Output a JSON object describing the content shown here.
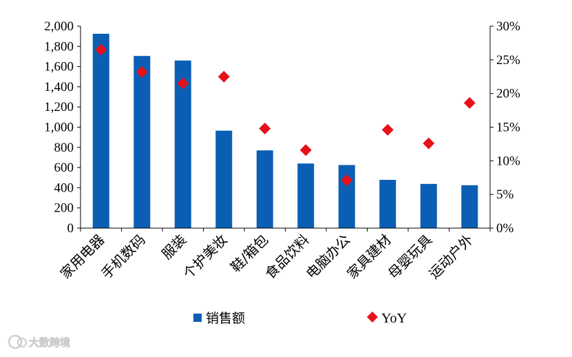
{
  "chart_data": {
    "type": "bar",
    "categories": [
      "家用电器",
      "手机数码",
      "服装",
      "个护美妆",
      "鞋/箱包",
      "食品饮料",
      "电脑办公",
      "家具建材",
      "母婴玩具",
      "运动户外"
    ],
    "series": [
      {
        "name": "销售额",
        "type": "bar",
        "axis": "left",
        "values": [
          1925,
          1705,
          1660,
          965,
          770,
          640,
          625,
          478,
          438,
          425
        ]
      },
      {
        "name": "YoY",
        "type": "scatter",
        "axis": "right",
        "values": [
          26.5,
          23.2,
          21.5,
          22.5,
          14.8,
          11.6,
          7.1,
          14.6,
          12.6,
          18.6
        ]
      }
    ],
    "y_left": {
      "min": 0,
      "max": 2000,
      "ticks": [
        "0",
        "200",
        "400",
        "600",
        "800",
        "1,000",
        "1,200",
        "1,400",
        "1,600",
        "1,800",
        "2,000"
      ]
    },
    "y_right": {
      "min": 0,
      "max": 30,
      "ticks": [
        "0%",
        "5%",
        "10%",
        "15%",
        "20%",
        "25%",
        "30%"
      ]
    },
    "legend_position": "bottom",
    "grid": false,
    "colors": {
      "bar": "#0a5fb4",
      "marker": "#e8101a",
      "axis": "#000000"
    }
  },
  "watermark": {
    "text": "大数跨境",
    "icon": "ip-logo-icon"
  }
}
